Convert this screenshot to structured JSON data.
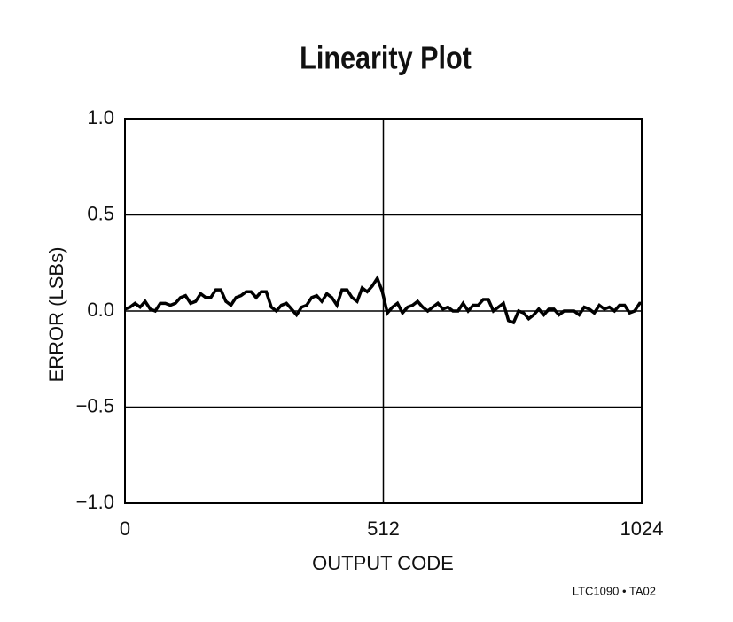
{
  "chart_data": {
    "type": "line",
    "title": "Linearity Plot",
    "x_label": "OUTPUT CODE",
    "y_label": "ERROR (LSBs)",
    "annotation": "LTC1090 • TA02",
    "x": [
      0,
      10,
      20,
      30,
      40,
      50,
      60,
      70,
      80,
      90,
      100,
      110,
      120,
      130,
      140,
      150,
      160,
      170,
      180,
      190,
      200,
      210,
      220,
      230,
      240,
      250,
      260,
      270,
      280,
      290,
      300,
      310,
      320,
      330,
      340,
      350,
      360,
      370,
      380,
      390,
      400,
      410,
      420,
      430,
      440,
      450,
      460,
      470,
      480,
      490,
      500,
      510,
      520,
      530,
      540,
      550,
      560,
      570,
      580,
      590,
      600,
      610,
      620,
      630,
      640,
      650,
      660,
      670,
      680,
      690,
      700,
      710,
      720,
      730,
      740,
      750,
      760,
      770,
      780,
      790,
      800,
      810,
      820,
      830,
      840,
      850,
      860,
      870,
      880,
      890,
      900,
      910,
      920,
      930,
      940,
      950,
      960,
      970,
      980,
      990,
      1000,
      1010,
      1020,
      1024
    ],
    "values": [
      0.01,
      0.02,
      0.04,
      0.02,
      0.05,
      0.01,
      0.0,
      0.04,
      0.04,
      0.03,
      0.04,
      0.07,
      0.08,
      0.04,
      0.05,
      0.09,
      0.07,
      0.07,
      0.11,
      0.11,
      0.05,
      0.03,
      0.07,
      0.08,
      0.1,
      0.1,
      0.07,
      0.1,
      0.1,
      0.02,
      0.0,
      0.03,
      0.04,
      0.01,
      -0.02,
      0.02,
      0.03,
      0.07,
      0.08,
      0.05,
      0.09,
      0.07,
      0.03,
      0.11,
      0.11,
      0.07,
      0.05,
      0.12,
      0.1,
      0.13,
      0.17,
      0.1,
      -0.01,
      0.02,
      0.04,
      -0.01,
      0.02,
      0.03,
      0.05,
      0.02,
      0.0,
      0.02,
      0.04,
      0.01,
      0.02,
      0.0,
      0.0,
      0.04,
      0.0,
      0.03,
      0.03,
      0.06,
      0.06,
      0.0,
      0.02,
      0.04,
      -0.05,
      -0.06,
      0.0,
      -0.01,
      -0.04,
      -0.02,
      0.01,
      -0.02,
      0.01,
      0.01,
      -0.02,
      0.0,
      0.0,
      0.0,
      -0.02,
      0.02,
      0.01,
      -0.01,
      0.03,
      0.01,
      0.02,
      0.0,
      0.03,
      0.03,
      -0.01,
      0.0,
      0.04,
      0.04
    ],
    "color": "#000000",
    "xlim": [
      0,
      1024
    ],
    "xticks": [
      0,
      512,
      1024
    ],
    "ylim": [
      -1,
      1
    ],
    "yticks": [
      {
        "value": -1,
        "label": "−1.0"
      },
      {
        "value": -0.5,
        "label": "−0.5"
      },
      {
        "value": 0,
        "label": "0.0"
      },
      {
        "value": 0.5,
        "label": "0.5"
      },
      {
        "value": 1,
        "label": "1.0"
      }
    ],
    "grid": true
  }
}
